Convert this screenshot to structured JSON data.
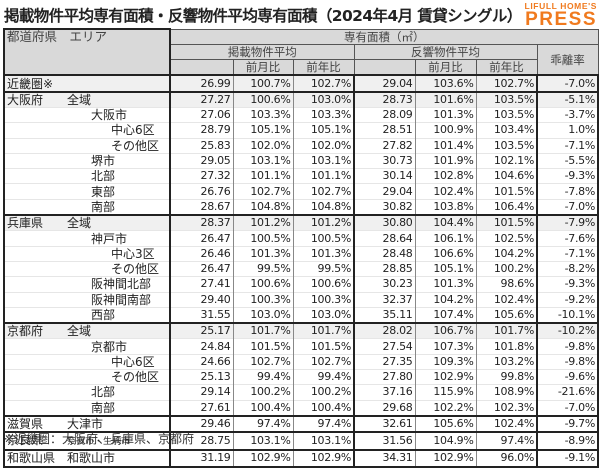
{
  "title": "掲載物件平均専有面積・反響物件平均専有面積（2024年4月 賃貸シングル）",
  "logo": {
    "top": "LIFULL HOME'S",
    "bottom": "PRESS",
    "color": "#f07a1e"
  },
  "headers": {
    "region": "都道府県　エリア",
    "area": "専有面積（㎡）",
    "listed": "掲載物件平均",
    "inquired": "反響物件平均",
    "gap": "乖離率",
    "mom": "前月比",
    "yoy": "前年比"
  },
  "rows": [
    {
      "pref": "近畿圏※",
      "area": "",
      "l": "26.99",
      "lm": "100.7%",
      "ly": "102.7%",
      "r": "29.04",
      "rm": "103.6%",
      "ry": "102.7%",
      "g": "-7.0%"
    },
    {
      "pref": "大阪府",
      "area": "全域",
      "l": "27.27",
      "lm": "100.6%",
      "ly": "103.0%",
      "r": "28.73",
      "rm": "101.6%",
      "ry": "103.5%",
      "g": "-5.1%"
    },
    {
      "pref": "",
      "area": "大阪市",
      "l": "27.06",
      "lm": "103.3%",
      "ly": "103.3%",
      "r": "28.09",
      "rm": "101.3%",
      "ry": "103.5%",
      "g": "-3.7%"
    },
    {
      "pref": "",
      "area": "中心6区",
      "l": "28.79",
      "lm": "105.1%",
      "ly": "105.1%",
      "r": "28.51",
      "rm": "100.9%",
      "ry": "103.4%",
      "g": "1.0%"
    },
    {
      "pref": "",
      "area": "その他区",
      "l": "25.83",
      "lm": "102.0%",
      "ly": "102.0%",
      "r": "27.82",
      "rm": "101.4%",
      "ry": "103.5%",
      "g": "-7.1%"
    },
    {
      "pref": "",
      "area": "堺市",
      "l": "29.05",
      "lm": "103.1%",
      "ly": "103.1%",
      "r": "30.73",
      "rm": "101.9%",
      "ry": "102.1%",
      "g": "-5.5%"
    },
    {
      "pref": "",
      "area": "北部",
      "l": "27.32",
      "lm": "101.1%",
      "ly": "101.1%",
      "r": "30.14",
      "rm": "102.8%",
      "ry": "104.6%",
      "g": "-9.3%"
    },
    {
      "pref": "",
      "area": "東部",
      "l": "26.76",
      "lm": "102.7%",
      "ly": "102.7%",
      "r": "29.04",
      "rm": "102.4%",
      "ry": "101.5%",
      "g": "-7.8%"
    },
    {
      "pref": "",
      "area": "南部",
      "l": "28.67",
      "lm": "104.8%",
      "ly": "104.8%",
      "r": "30.82",
      "rm": "103.8%",
      "ry": "106.4%",
      "g": "-7.0%"
    },
    {
      "pref": "兵庫県",
      "area": "全域",
      "l": "28.37",
      "lm": "101.2%",
      "ly": "101.2%",
      "r": "30.80",
      "rm": "104.4%",
      "ry": "101.5%",
      "g": "-7.9%"
    },
    {
      "pref": "",
      "area": "神戸市",
      "l": "26.47",
      "lm": "100.5%",
      "ly": "100.5%",
      "r": "28.64",
      "rm": "106.1%",
      "ry": "102.5%",
      "g": "-7.6%"
    },
    {
      "pref": "",
      "area": "中心3区",
      "l": "26.46",
      "lm": "101.3%",
      "ly": "101.3%",
      "r": "28.48",
      "rm": "106.6%",
      "ry": "104.2%",
      "g": "-7.1%"
    },
    {
      "pref": "",
      "area": "その他区",
      "l": "26.47",
      "lm": "99.5%",
      "ly": "99.5%",
      "r": "28.85",
      "rm": "105.1%",
      "ry": "100.2%",
      "g": "-8.2%"
    },
    {
      "pref": "",
      "area": "阪神間北部",
      "l": "27.41",
      "lm": "100.6%",
      "ly": "100.6%",
      "r": "30.23",
      "rm": "101.3%",
      "ry": "98.6%",
      "g": "-9.3%"
    },
    {
      "pref": "",
      "area": "阪神間南部",
      "l": "29.40",
      "lm": "100.3%",
      "ly": "100.3%",
      "r": "32.37",
      "rm": "104.2%",
      "ry": "102.4%",
      "g": "-9.2%"
    },
    {
      "pref": "",
      "area": "西部",
      "l": "31.55",
      "lm": "103.0%",
      "ly": "103.0%",
      "r": "35.11",
      "rm": "107.4%",
      "ry": "105.6%",
      "g": "-10.1%"
    },
    {
      "pref": "京都府",
      "area": "全域",
      "l": "25.17",
      "lm": "101.7%",
      "ly": "101.7%",
      "r": "28.02",
      "rm": "106.7%",
      "ry": "101.7%",
      "g": "-10.2%"
    },
    {
      "pref": "",
      "area": "京都市",
      "l": "24.84",
      "lm": "101.5%",
      "ly": "101.5%",
      "r": "27.54",
      "rm": "107.3%",
      "ry": "101.8%",
      "g": "-9.8%"
    },
    {
      "pref": "",
      "area": "中心6区",
      "l": "24.66",
      "lm": "102.7%",
      "ly": "102.7%",
      "r": "27.35",
      "rm": "109.3%",
      "ry": "103.2%",
      "g": "-9.8%"
    },
    {
      "pref": "",
      "area": "その他区",
      "l": "25.13",
      "lm": "99.4%",
      "ly": "99.4%",
      "r": "27.80",
      "rm": "102.9%",
      "ry": "99.8%",
      "g": "-9.6%"
    },
    {
      "pref": "",
      "area": "北部",
      "l": "29.14",
      "lm": "100.2%",
      "ly": "100.2%",
      "r": "37.16",
      "rm": "115.9%",
      "ry": "108.9%",
      "g": "-21.6%"
    },
    {
      "pref": "",
      "area": "南部",
      "l": "27.61",
      "lm": "100.4%",
      "ly": "100.4%",
      "r": "29.68",
      "rm": "102.2%",
      "ry": "102.3%",
      "g": "-7.0%"
    },
    {
      "pref": "滋賀県",
      "area": "大津市",
      "l": "29.46",
      "lm": "97.4%",
      "ly": "97.4%",
      "r": "32.61",
      "rm": "105.6%",
      "ry": "102.4%",
      "g": "-9.7%"
    },
    {
      "pref": "奈良県",
      "area": "奈良市・生駒市",
      "l": "28.75",
      "lm": "103.1%",
      "ly": "103.1%",
      "r": "31.56",
      "rm": "104.9%",
      "ry": "97.4%",
      "g": "-8.9%"
    },
    {
      "pref": "和歌山県",
      "area": "和歌山市",
      "l": "31.19",
      "lm": "102.9%",
      "ly": "102.9%",
      "r": "34.31",
      "rm": "102.9%",
      "ry": "96.0%",
      "g": "-9.1%"
    }
  ],
  "note": "※近畿圏：大阪府、兵庫県、京都府"
}
